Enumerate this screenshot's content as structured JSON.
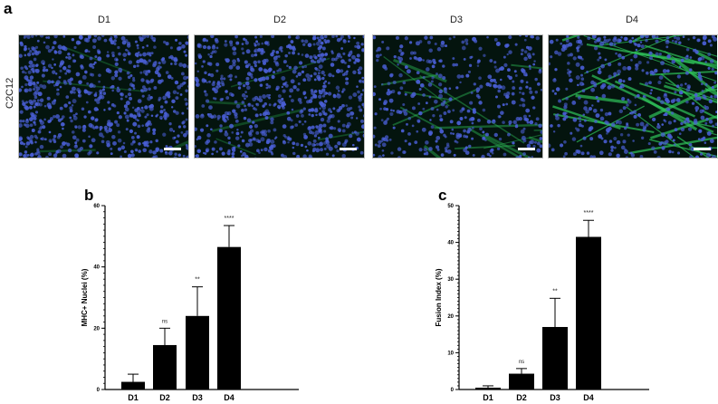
{
  "figure": {
    "panel_a": {
      "letter": "a",
      "row_label": "C2C12",
      "columns": [
        {
          "label": "D1",
          "green_density": 0.05
        },
        {
          "label": "D2",
          "green_density": 0.08
        },
        {
          "label": "D3",
          "green_density": 0.35
        },
        {
          "label": "D4",
          "green_density": 0.9
        }
      ]
    },
    "panel_b": {
      "letter": "b"
    },
    "panel_c": {
      "letter": "c"
    }
  },
  "colors": {
    "bar": "#000000",
    "nuclei": "#4a5fd6",
    "myotube": "#2fc45a",
    "background": "#04140e"
  },
  "chart_data": [
    {
      "type": "bar",
      "panel": "b",
      "title": "",
      "xlabel": "",
      "ylabel": "MHC+ Nuclei (%)",
      "categories": [
        "D1",
        "D2",
        "D3",
        "D4"
      ],
      "values": [
        2.5,
        14.5,
        24,
        46.5
      ],
      "error_upper": [
        5,
        20,
        33.5,
        53.5
      ],
      "significance": [
        "",
        "ns",
        "**",
        "****"
      ],
      "ylim": [
        0,
        60
      ],
      "yticks": [
        0,
        20,
        40,
        60
      ],
      "minor_tick_step": 2,
      "grid": false,
      "legend": null
    },
    {
      "type": "bar",
      "panel": "c",
      "title": "",
      "xlabel": "",
      "ylabel": "Fusion Index (%)",
      "categories": [
        "D1",
        "D2",
        "D3",
        "D4"
      ],
      "values": [
        0.5,
        4.3,
        17,
        41.5
      ],
      "error_upper": [
        1,
        5.7,
        24.8,
        46
      ],
      "significance": [
        "",
        "ns",
        "**",
        "****"
      ],
      "ylim": [
        0,
        50
      ],
      "yticks": [
        0,
        10,
        20,
        30,
        40,
        50
      ],
      "minor_tick_step": 1,
      "grid": false,
      "legend": null
    }
  ]
}
